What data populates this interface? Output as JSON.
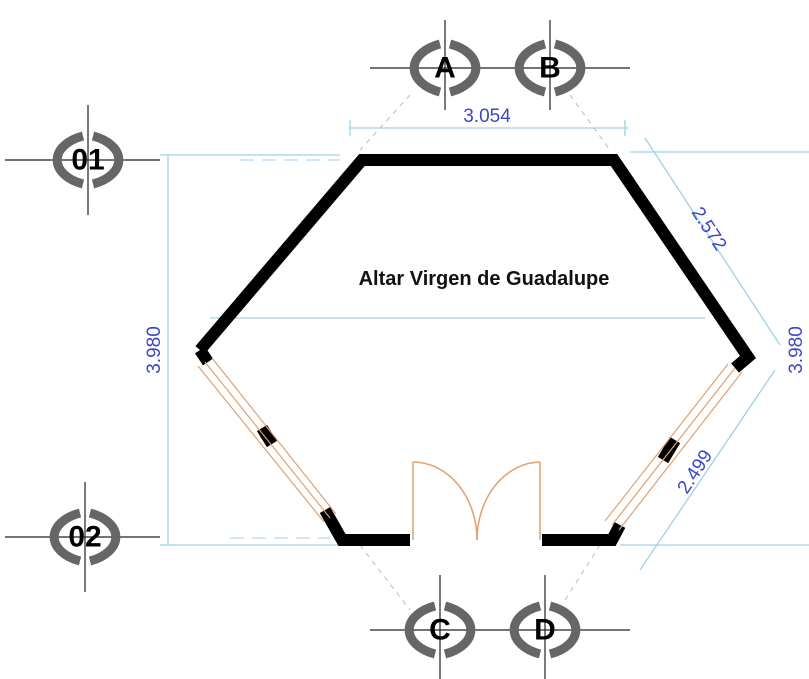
{
  "title": "Altar Virgen de Guadalupe",
  "grid_labels": {
    "top": [
      "A",
      "B"
    ],
    "bottom": [
      "C",
      "D"
    ],
    "left": [
      "01",
      "02"
    ]
  },
  "dimensions": {
    "top": "3.054",
    "upper_right": "2.572",
    "left": "3.980",
    "right": "3.980",
    "lower_right": "2.499"
  }
}
